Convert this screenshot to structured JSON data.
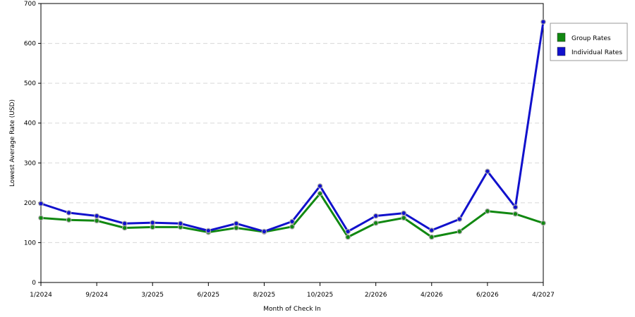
{
  "chart_data": {
    "type": "line",
    "title": "",
    "xlabel": "Month of Check In",
    "ylabel": "Lowest Average Rate (USD)",
    "ylim": [
      0,
      700
    ],
    "yticks": [
      0,
      100,
      200,
      300,
      400,
      500,
      600,
      700
    ],
    "grid": true,
    "legend_position": "right",
    "x_tick_labels": [
      "1/2024",
      "9/2024",
      "3/2025",
      "6/2025",
      "8/2025",
      "10/2025",
      "2/2026",
      "4/2026",
      "6/2026",
      "4/2027"
    ],
    "point_count": 19,
    "series": [
      {
        "name": "Group Rates",
        "color": "#118811",
        "values": [
          162,
          157,
          155,
          137,
          139,
          139,
          126,
          137,
          127,
          140,
          223,
          114,
          149,
          162,
          114,
          128,
          179,
          172,
          149
        ]
      },
      {
        "name": "Individual Rates",
        "color": "#1111cc",
        "values": [
          198,
          175,
          167,
          148,
          150,
          148,
          130,
          148,
          128,
          153,
          242,
          128,
          167,
          174,
          131,
          159,
          279,
          189,
          654
        ]
      }
    ]
  }
}
